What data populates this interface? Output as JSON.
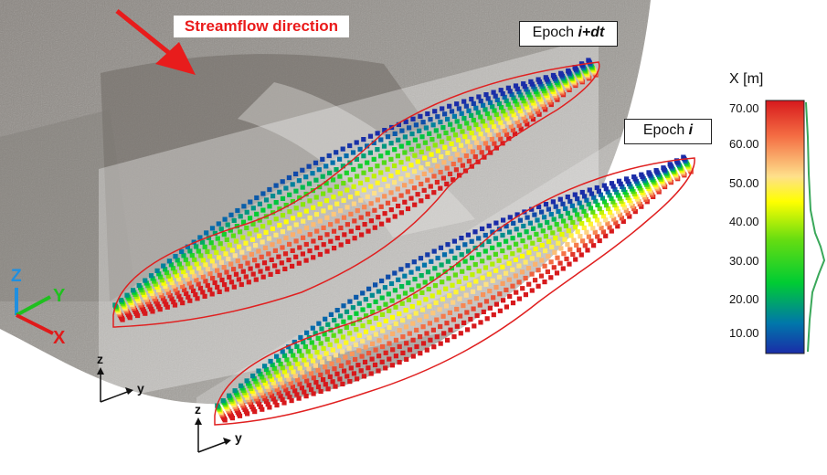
{
  "annotations": {
    "streamflow_label": "Streamflow direction",
    "epoch_top_prefix": "Epoch ",
    "epoch_top_var": "i+dt",
    "epoch_bottom_prefix": "Epoch ",
    "epoch_bottom_var": "i"
  },
  "axes_triads": {
    "main": {
      "z": "Z",
      "y": "Y",
      "x": "X"
    },
    "local_1": {
      "z": "z",
      "y": "y"
    },
    "local_2": {
      "z": "z",
      "y": "y"
    }
  },
  "colorbar": {
    "title": "X [m]",
    "ticks": [
      "70.00",
      "60.00",
      "50.00",
      "40.00",
      "30.00",
      "20.00",
      "10.00"
    ],
    "stops": [
      "#d7191c",
      "#f46d43",
      "#fee08b",
      "#ffff00",
      "#66dd11",
      "#00cc33",
      "#0077aa",
      "#1a2ca8"
    ]
  },
  "colors": {
    "outline": "#e02020",
    "streamflow_arrow": "#e81c1c",
    "axis_z": "#1f8fe0",
    "axis_y": "#1fc01f",
    "axis_x": "#e01a1a"
  }
}
